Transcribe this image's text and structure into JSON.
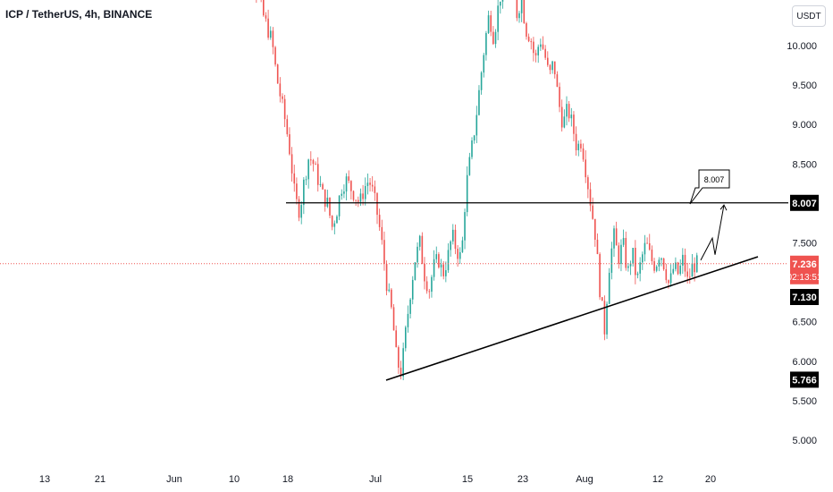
{
  "header": {
    "title": "ICP / TetherUS, 4h, BINANCE",
    "currency_button": "USDT"
  },
  "chart_data": {
    "type": "candlestick",
    "symbol": "ICP / TetherUS",
    "interval": "4h",
    "exchange": "BINANCE",
    "ylim": [
      4.7,
      11.2
    ],
    "y_ticks": [
      "10.000",
      "9.500",
      "9.000",
      "8.500",
      "7.500",
      "6.500",
      "6.000",
      "5.500",
      "5.000"
    ],
    "x_ticks": [
      "13",
      "21",
      "Jun",
      "10",
      "18",
      "Jul",
      "15",
      "23",
      "Aug",
      "12",
      "20"
    ],
    "price_labels": {
      "resistance": "8.007",
      "current_price": "7.236",
      "countdown": "02:13:51",
      "support": "7.130",
      "low": "5.766"
    },
    "annotation_label": "8.007",
    "colors": {
      "up": "#26a69a",
      "down": "#ef5350",
      "current_line": "#ef5350",
      "label_bg": "#000000",
      "axis_text": "#131722"
    },
    "path_points": [
      [
        0,
        11.6
      ],
      [
        2,
        11.3
      ],
      [
        4,
        10.8
      ],
      [
        6,
        10.4
      ],
      [
        8,
        10.05
      ],
      [
        9,
        9.6
      ],
      [
        10,
        9.3
      ],
      [
        11,
        9.0
      ],
      [
        12,
        8.6
      ],
      [
        13,
        8.05
      ],
      [
        14,
        7.9
      ],
      [
        15,
        8.3
      ],
      [
        16,
        8.6
      ],
      [
        17,
        8.5
      ],
      [
        18,
        8.3
      ],
      [
        19,
        8.1
      ],
      [
        20,
        8.0
      ],
      [
        21,
        7.7
      ],
      [
        22,
        7.9
      ],
      [
        23,
        8.2
      ],
      [
        24,
        8.3
      ],
      [
        25,
        8.2
      ],
      [
        26,
        8.1
      ],
      [
        27,
        8.0
      ],
      [
        28,
        8.2
      ],
      [
        29,
        8.3
      ],
      [
        30,
        8.1
      ],
      [
        31,
        7.8
      ],
      [
        32,
        7.4
      ],
      [
        33,
        6.9
      ],
      [
        34,
        6.6
      ],
      [
        35,
        6.0
      ],
      [
        36,
        5.85
      ],
      [
        37,
        6.4
      ],
      [
        38,
        6.9
      ],
      [
        39,
        7.3
      ],
      [
        40,
        7.5
      ],
      [
        41,
        7.1
      ],
      [
        42,
        6.9
      ],
      [
        43,
        7.2
      ],
      [
        44,
        7.3
      ],
      [
        45,
        7.1
      ],
      [
        46,
        7.3
      ],
      [
        47,
        7.6
      ],
      [
        48,
        7.4
      ],
      [
        49,
        7.3
      ],
      [
        50,
        8.2
      ],
      [
        51,
        8.6
      ],
      [
        52,
        9.0
      ],
      [
        53,
        9.5
      ],
      [
        54,
        10.0
      ],
      [
        55,
        10.4
      ],
      [
        56,
        10.1
      ],
      [
        57,
        10.5
      ],
      [
        58,
        10.8
      ],
      [
        59,
        11.0
      ],
      [
        60,
        10.7
      ],
      [
        61,
        10.4
      ],
      [
        62,
        10.6
      ],
      [
        63,
        10.2
      ],
      [
        64,
        10.1
      ],
      [
        65,
        9.8
      ],
      [
        66,
        10.1
      ],
      [
        67,
        9.9
      ],
      [
        68,
        9.6
      ],
      [
        69,
        9.8
      ],
      [
        70,
        9.3
      ],
      [
        71,
        9.0
      ],
      [
        72,
        9.2
      ],
      [
        73,
        9.0
      ],
      [
        74,
        8.7
      ],
      [
        75,
        8.8
      ],
      [
        76,
        8.4
      ],
      [
        77,
        8.0
      ],
      [
        78,
        7.6
      ],
      [
        79,
        6.9
      ],
      [
        80,
        6.4
      ],
      [
        81,
        7.2
      ],
      [
        82,
        7.6
      ],
      [
        83,
        7.3
      ],
      [
        84,
        7.5
      ],
      [
        85,
        7.1
      ],
      [
        86,
        7.4
      ],
      [
        87,
        7.0
      ],
      [
        88,
        7.3
      ],
      [
        89,
        7.5
      ],
      [
        90,
        7.3
      ],
      [
        91,
        7.2
      ],
      [
        92,
        7.4
      ],
      [
        93,
        7.2
      ],
      [
        94,
        6.95
      ],
      [
        95,
        7.2
      ],
      [
        96,
        7.1
      ],
      [
        97,
        7.3
      ],
      [
        98,
        7.0
      ],
      [
        99,
        7.2
      ],
      [
        100,
        7.236
      ]
    ],
    "forecast_points": [
      [
        7.28
      ],
      [
        7.56
      ],
      [
        7.35
      ],
      [
        7.98
      ]
    ],
    "resistance_level": 8.007,
    "support_trendline": [
      [
        5.85
      ],
      [
        7.12
      ]
    ]
  }
}
